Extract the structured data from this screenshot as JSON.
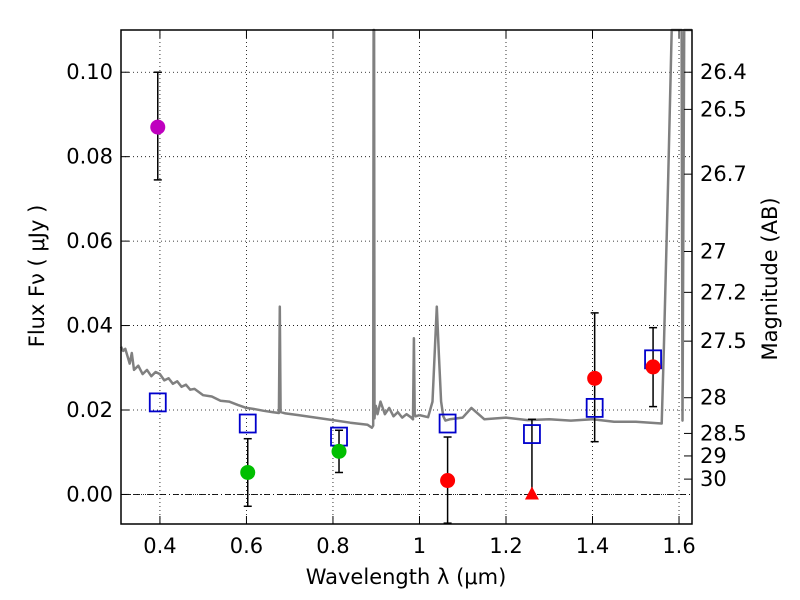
{
  "chart_data": {
    "type": "scatter",
    "xlabel": "Wavelength  λ (μm)",
    "ylabel_left": "Flux  Fν  ( μJy )",
    "ylabel_right": "Magnitude (AB)",
    "xlim": [
      0.31,
      1.63
    ],
    "ylim": [
      -0.007,
      0.11
    ],
    "grid": true,
    "x_ticks": [
      0.4,
      0.6,
      0.8,
      1.0,
      1.2,
      1.4,
      1.6
    ],
    "x_tick_labels": [
      "0.4",
      "0.6",
      "0.8",
      "1",
      "1.2",
      "1.4",
      "1.6"
    ],
    "y_ticks": [
      0.0,
      0.02,
      0.04,
      0.06,
      0.08,
      0.1
    ],
    "y_tick_labels": [
      "0.00",
      "0.02",
      "0.04",
      "0.06",
      "0.08",
      "0.10"
    ],
    "mag_ticks": [
      26.4,
      26.5,
      26.7,
      27,
      27.2,
      27.5,
      28,
      28.5,
      29,
      30
    ],
    "mag_tick_labels": [
      "26.4",
      "26.5",
      "26.7",
      "27",
      "27.2",
      "27.5",
      "28",
      "28.5",
      "29",
      "30"
    ],
    "series": [
      {
        "name": "model SED",
        "kind": "line",
        "color": "#808080",
        "x": [
          0.31,
          0.315,
          0.32,
          0.33,
          0.335,
          0.34,
          0.35,
          0.36,
          0.37,
          0.38,
          0.39,
          0.4,
          0.41,
          0.42,
          0.43,
          0.44,
          0.45,
          0.46,
          0.47,
          0.48,
          0.5,
          0.52,
          0.54,
          0.56,
          0.58,
          0.6,
          0.62,
          0.64,
          0.66,
          0.675,
          0.677,
          0.679,
          0.69,
          0.72,
          0.76,
          0.8,
          0.84,
          0.88,
          0.89,
          0.893,
          0.894,
          0.895,
          0.896,
          0.897,
          0.899,
          0.903,
          0.91,
          0.92,
          0.93,
          0.94,
          0.95,
          0.96,
          0.97,
          0.98,
          0.985,
          0.987,
          0.989,
          0.991,
          1.0,
          1.02,
          1.03,
          1.035,
          1.04,
          1.045,
          1.05,
          1.055,
          1.06,
          1.07,
          1.1,
          1.12,
          1.15,
          1.2,
          1.25,
          1.3,
          1.35,
          1.4,
          1.45,
          1.5,
          1.56,
          1.565,
          1.575,
          1.583,
          1.59,
          1.6,
          1.606,
          1.608,
          1.612,
          1.63
        ],
        "y": [
          0.035,
          0.034,
          0.0345,
          0.031,
          0.0335,
          0.0295,
          0.0305,
          0.0285,
          0.0295,
          0.028,
          0.029,
          0.0285,
          0.027,
          0.0275,
          0.0262,
          0.0268,
          0.0255,
          0.026,
          0.0248,
          0.025,
          0.0235,
          0.0232,
          0.0222,
          0.022,
          0.0212,
          0.0205,
          0.0202,
          0.0198,
          0.0195,
          0.0193,
          0.0445,
          0.0195,
          0.0192,
          0.0188,
          0.0182,
          0.0176,
          0.017,
          0.0165,
          0.0158,
          0.0163,
          0.11,
          0.11,
          0.018,
          0.0195,
          0.021,
          0.019,
          0.022,
          0.019,
          0.0205,
          0.0185,
          0.0195,
          0.0182,
          0.019,
          0.0183,
          0.0178,
          0.037,
          0.019,
          0.0185,
          0.0188,
          0.0183,
          0.022,
          0.033,
          0.0445,
          0.033,
          0.022,
          0.0185,
          0.0175,
          0.0178,
          0.0182,
          0.0205,
          0.0178,
          0.0182,
          0.0176,
          0.0178,
          0.0175,
          0.0178,
          0.0172,
          0.0172,
          0.0168,
          0.035,
          0.075,
          0.11,
          0.11,
          0.11,
          0.11,
          0.0175,
          0.11,
          0.11
        ]
      },
      {
        "name": "model band fluxes",
        "kind": "open-square",
        "color": "#0000cc",
        "x": [
          0.395,
          0.603,
          0.814,
          1.065,
          1.26,
          1.405,
          1.54
        ],
        "y": [
          0.0218,
          0.0168,
          0.0137,
          0.0168,
          0.0143,
          0.0205,
          0.032
        ]
      },
      {
        "name": "purple detection",
        "kind": "filled-circle",
        "color": "#bf00bf",
        "x": [
          0.395
        ],
        "y": [
          0.087
        ],
        "err_low": [
          0.0745
        ],
        "err_high": [
          0.1
        ]
      },
      {
        "name": "green detections",
        "kind": "filled-circle",
        "color": "#00bf00",
        "x": [
          0.603,
          0.814
        ],
        "y": [
          0.0052,
          0.0102
        ],
        "err_low": [
          -0.0028,
          0.0052
        ],
        "err_high": [
          0.0132,
          0.0152
        ]
      },
      {
        "name": "red detections",
        "kind": "filled-circle",
        "color": "#ff0000",
        "x": [
          1.065,
          1.405,
          1.54
        ],
        "y": [
          0.0033,
          0.0275,
          0.0302
        ],
        "err_low": [
          -0.0068,
          0.0125,
          0.0208
        ],
        "err_high": [
          0.0136,
          0.043,
          0.0395
        ]
      },
      {
        "name": "red upper limit",
        "kind": "triangle",
        "color": "#ff0000",
        "x": [
          1.26
        ],
        "y": [
          0.0
        ],
        "err_low": [
          0.0
        ],
        "err_high": [
          0.0178
        ]
      }
    ]
  }
}
